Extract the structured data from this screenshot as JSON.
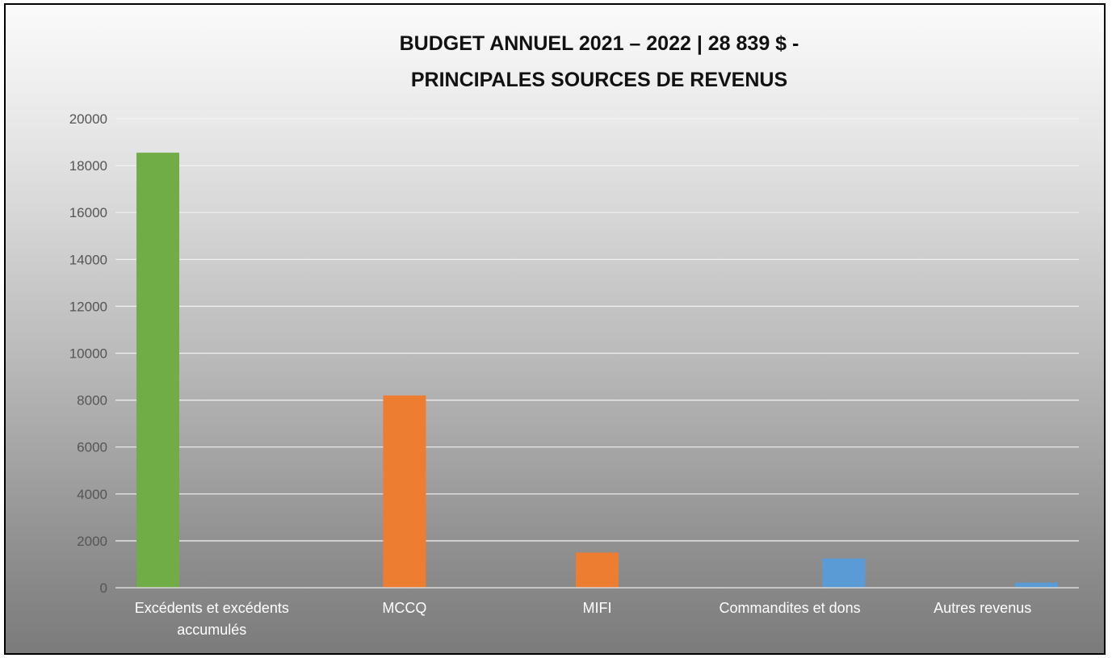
{
  "chart_data": {
    "type": "bar",
    "title_lines": [
      "BUDGET  ANNUEL 2021 – 2022 | 28 839 $ -",
      "PRINCIPALES SOURCES DE REVENUS"
    ],
    "xlabel": "",
    "ylabel": "",
    "ylim": [
      0,
      20000
    ],
    "yticks": [
      "0",
      "2000",
      "4000",
      "6000",
      "8000",
      "10000",
      "12000",
      "14000",
      "16000",
      "18000",
      "20000"
    ],
    "grid": true,
    "legend": "none",
    "categories": [
      [
        "Excédents et excédents",
        "accumulés"
      ],
      [
        "MCCQ"
      ],
      [
        "MIFI"
      ],
      [
        "Commandites et dons"
      ],
      [
        "Autres revenus"
      ]
    ],
    "series": [
      {
        "color": "#70ad47",
        "values": [
          18550,
          0,
          0,
          0,
          0
        ]
      },
      {
        "color": "#ed7d31",
        "values": [
          0,
          8200,
          1500,
          0,
          0
        ]
      },
      {
        "color": "#5b9bd5",
        "values": [
          0,
          0,
          0,
          1250,
          220
        ]
      }
    ]
  },
  "colors": {
    "gridline": "#f2f2f2",
    "baseline": "#d9d9d9",
    "frame_border": "#000000"
  }
}
